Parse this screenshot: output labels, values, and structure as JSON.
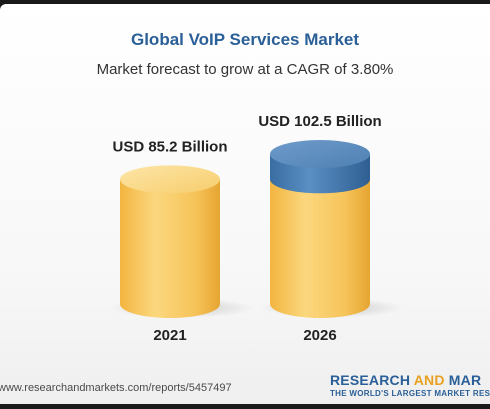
{
  "header": {
    "title": "Global VoIP Services Market",
    "subtitle": "Market forecast to grow at a CAGR of 3.80%"
  },
  "chart_data": {
    "type": "bar",
    "categories": [
      "2021",
      "2026"
    ],
    "values": [
      85.2,
      102.5
    ],
    "data_labels": [
      "USD 85.2 Billion",
      "USD 102.5 Billion"
    ],
    "unit": "USD Billion",
    "highlight_increment": 17.3,
    "colors": {
      "base": "#f6c45a",
      "increment": "#4a7fb5"
    }
  },
  "footer": {
    "url": "www.researchandmarkets.com/reports/5457497",
    "brand_part1": "RESEARCH ",
    "brand_and": "AND",
    "brand_part2": " MAR",
    "brand_tagline": "THE WORLD'S LARGEST MARKET RESEAR"
  }
}
